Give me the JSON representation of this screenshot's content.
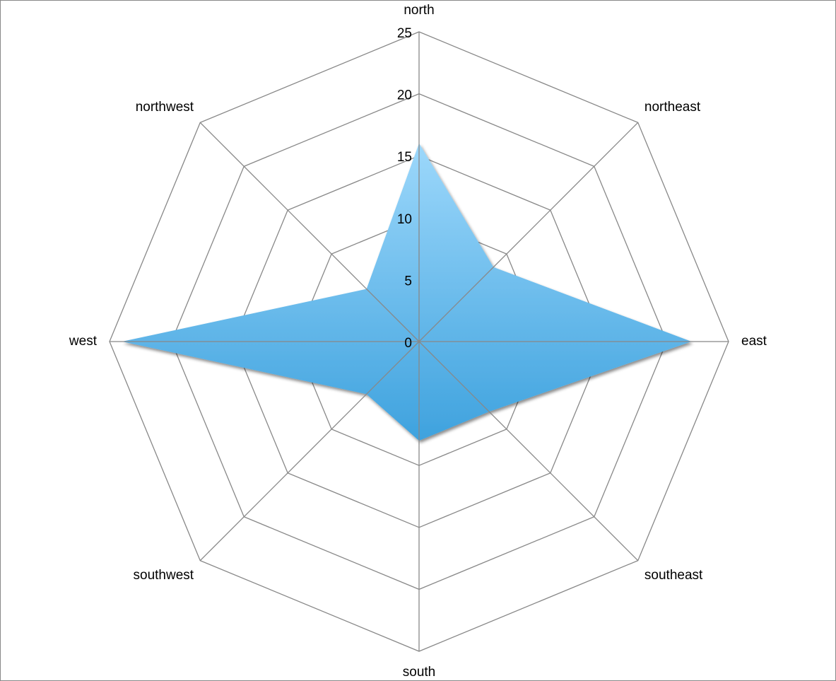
{
  "chart_data": {
    "type": "radar",
    "categories": [
      "north",
      "northeast",
      "east",
      "southeast",
      "south",
      "southwest",
      "west",
      "northwest"
    ],
    "values": [
      16,
      8.5,
      22,
      8,
      8,
      6,
      24,
      6
    ],
    "color": "#3ea2de",
    "ylim": [
      0,
      25
    ],
    "yticks": [
      0,
      5,
      10,
      15,
      20,
      25
    ],
    "grid": true
  }
}
